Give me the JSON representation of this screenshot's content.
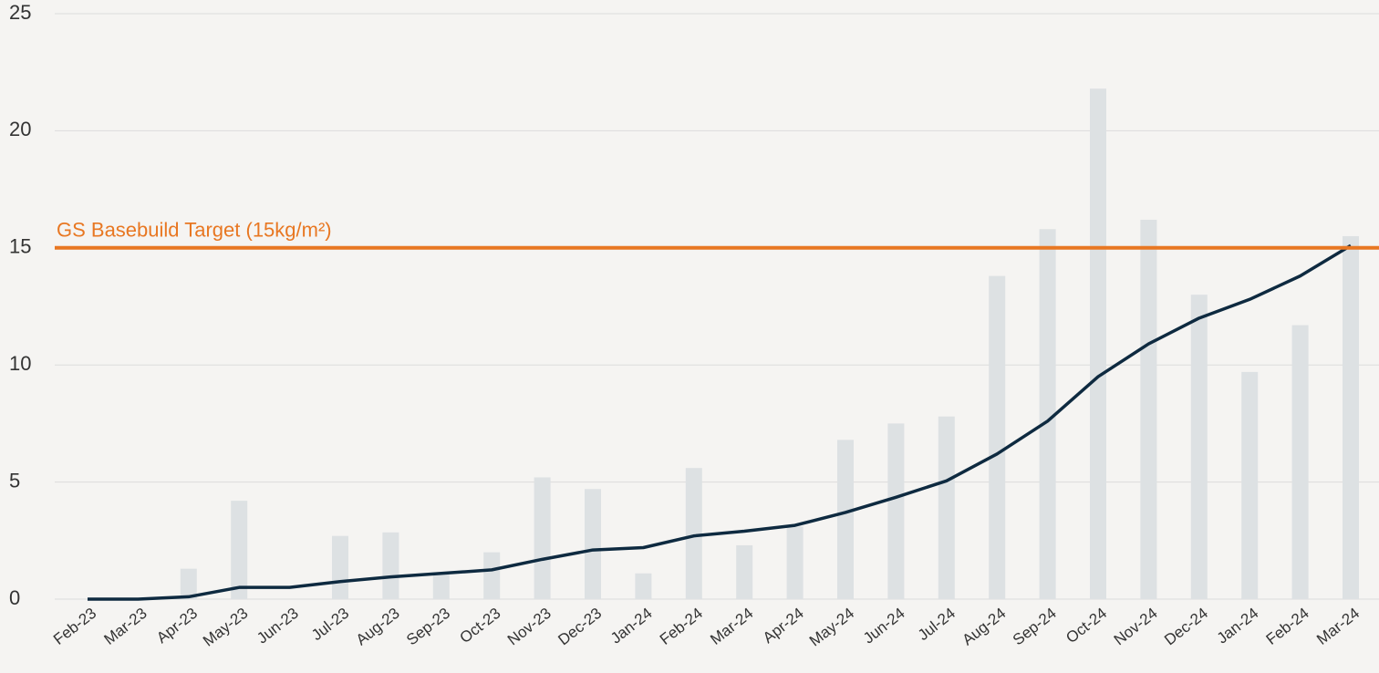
{
  "chart_data": {
    "type": "combo",
    "categories": [
      "Feb-23",
      "Mar-23",
      "Apr-23",
      "May-23",
      "Jun-23",
      "Jul-23",
      "Aug-23",
      "Sep-23",
      "Oct-23",
      "Nov-23",
      "Dec-23",
      "Jan-24",
      "Feb-24",
      "Mar-24",
      "Apr-24",
      "May-24",
      "Jun-24",
      "Jul-24",
      "Aug-24",
      "Sep-24",
      "Oct-24",
      "Nov-24",
      "Dec-24",
      "Jan-24",
      "Feb-24",
      "Mar-24"
    ],
    "series": [
      {
        "type": "bar",
        "color": "#dde1e3",
        "values": [
          0,
          0,
          1.3,
          4.2,
          0,
          2.7,
          2.85,
          1.1,
          2.0,
          5.2,
          4.7,
          1.1,
          5.6,
          2.3,
          3.1,
          6.8,
          7.5,
          7.8,
          13.8,
          15.8,
          21.8,
          16.2,
          13.0,
          9.7,
          11.7,
          15.5
        ]
      },
      {
        "type": "line",
        "color": "#0e2a40",
        "values": [
          0,
          0,
          0.1,
          0.5,
          0.5,
          0.75,
          0.95,
          1.1,
          1.25,
          1.7,
          2.1,
          2.2,
          2.7,
          2.9,
          3.15,
          3.7,
          4.35,
          5.05,
          6.2,
          7.6,
          9.5,
          10.9,
          12.0,
          12.8,
          13.8,
          15.1
        ]
      }
    ],
    "reference_line": {
      "value": 15,
      "label": "GS Basebuild Target (15kg/m²)",
      "color": "#e87722"
    },
    "ylim": [
      0,
      25
    ],
    "yticks": [
      0,
      5,
      10,
      15,
      20,
      25
    ],
    "grid": true
  }
}
